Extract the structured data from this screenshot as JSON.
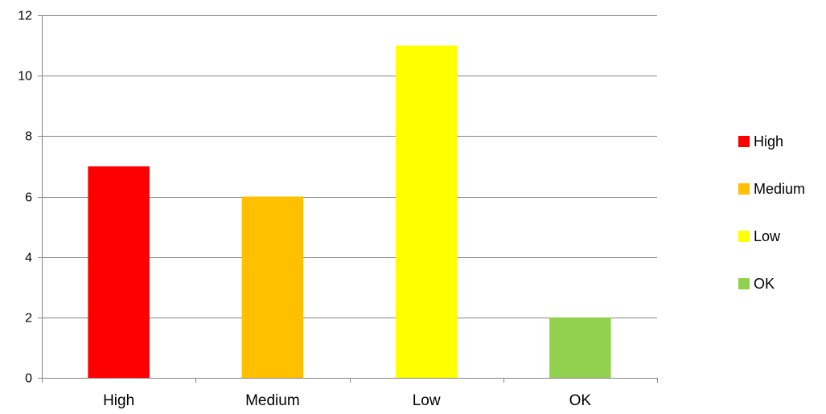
{
  "chart_data": {
    "type": "bar",
    "categories": [
      "High",
      "Medium",
      "Low",
      "OK"
    ],
    "values": [
      7,
      6,
      11,
      2
    ],
    "colors": [
      "#ff0000",
      "#ffc000",
      "#ffff00",
      "#92d050"
    ],
    "title": "",
    "xlabel": "",
    "ylabel": "",
    "ylim": [
      0,
      12
    ],
    "yticks": [
      0,
      2,
      4,
      6,
      8,
      10,
      12
    ],
    "grid": true,
    "legend": {
      "position": "right",
      "entries": [
        "High",
        "Medium",
        "Low",
        "OK"
      ]
    }
  }
}
